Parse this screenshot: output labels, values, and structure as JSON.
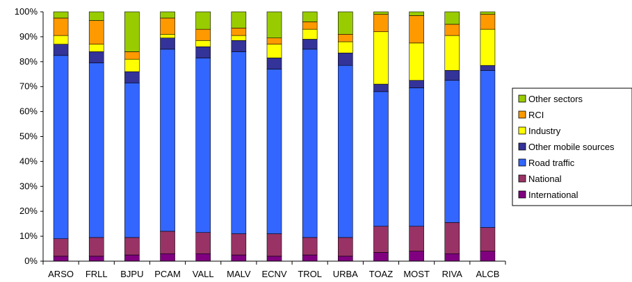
{
  "chart_data": {
    "type": "bar",
    "stacked": true,
    "percent": true,
    "categories": [
      "ARSO",
      "FRLL",
      "BJPU",
      "PCAM",
      "VALL",
      "MALV",
      "ECNV",
      "TROL",
      "URBA",
      "TOAZ",
      "MOST",
      "RIVA",
      "ALCB"
    ],
    "series": [
      {
        "name": "International",
        "color": "#800080",
        "values": [
          2,
          2,
          2.5,
          3,
          3,
          2.5,
          2,
          2.5,
          2,
          3.5,
          4,
          3,
          4
        ]
      },
      {
        "name": "National",
        "color": "#993366",
        "values": [
          7,
          7.5,
          7,
          9,
          8.5,
          8.5,
          9,
          7,
          7.5,
          10.5,
          10,
          12.5,
          9.5
        ]
      },
      {
        "name": "Road traffic",
        "color": "#3366FF",
        "values": [
          73.5,
          70,
          62,
          73,
          70,
          73,
          66,
          75.5,
          69,
          54,
          55.5,
          57,
          63
        ]
      },
      {
        "name": "Other mobile sources",
        "color": "#333399",
        "values": [
          4.5,
          4.5,
          4.5,
          4.5,
          4.5,
          4.5,
          4.5,
          4,
          5,
          3,
          3,
          4,
          2
        ]
      },
      {
        "name": "Industry",
        "color": "#FFFF00",
        "values": [
          3.5,
          3,
          5,
          1.5,
          2.5,
          2,
          5.5,
          4,
          4.5,
          21,
          15,
          14,
          14.5
        ]
      },
      {
        "name": "RCI",
        "color": "#FF9900",
        "values": [
          7,
          9.5,
          3,
          6.5,
          4.5,
          3,
          2.5,
          3,
          3,
          7,
          11,
          4.5,
          6
        ]
      },
      {
        "name": "Other sectors",
        "color": "#99CC00",
        "values": [
          2.5,
          3.5,
          16,
          2.5,
          7,
          6.5,
          10.5,
          4,
          9,
          1,
          1.5,
          5,
          1
        ]
      }
    ],
    "y_ticks": [
      "0%",
      "10%",
      "20%",
      "30%",
      "40%",
      "50%",
      "60%",
      "70%",
      "80%",
      "90%",
      "100%"
    ],
    "ylim": [
      0,
      100
    ],
    "grid": false,
    "legend_position": "right",
    "legend_order": [
      "Other sectors",
      "RCI",
      "Industry",
      "Other mobile sources",
      "Road traffic",
      "National",
      "International"
    ]
  }
}
